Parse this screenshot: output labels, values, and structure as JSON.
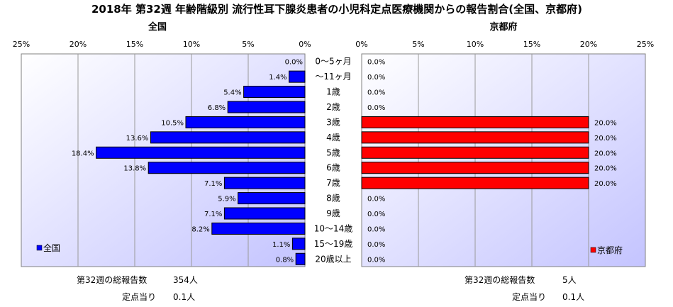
{
  "chart_data": {
    "type": "bar",
    "title": "2018年 第32週 年齢階級別 流行性耳下腺炎患者の小児科定点医療機関からの報告割合(全国、京都府)",
    "categories": [
      "0～5ヶ月",
      "～11ヶ月",
      "1歳",
      "2歳",
      "3歳",
      "4歳",
      "5歳",
      "6歳",
      "7歳",
      "8歳",
      "9歳",
      "10～14歳",
      "15～19歳",
      "20歳以上"
    ],
    "xticks": [
      "25%",
      "20%",
      "15%",
      "10%",
      "5%",
      "0%"
    ],
    "xticks_right": [
      "0%",
      "5%",
      "10%",
      "15%",
      "20%",
      "25%"
    ],
    "xlim": [
      0,
      25
    ],
    "series": [
      {
        "name": "全国",
        "panel_title": "全国",
        "color": "#0000ff",
        "values": [
          0.0,
          1.4,
          5.4,
          6.8,
          10.5,
          13.6,
          18.4,
          13.8,
          7.1,
          5.9,
          7.1,
          8.2,
          1.1,
          0.8
        ],
        "labels": [
          "0.0%",
          "1.4%",
          "5.4%",
          "6.8%",
          "10.5%",
          "13.6%",
          "18.4%",
          "13.8%",
          "7.1%",
          "5.9%",
          "7.1%",
          "8.2%",
          "1.1%",
          "0.8%"
        ]
      },
      {
        "name": "京都府",
        "panel_title": "京都府",
        "color": "#ff0000",
        "values": [
          0.0,
          0.0,
          0.0,
          0.0,
          20.0,
          20.0,
          20.0,
          20.0,
          20.0,
          0.0,
          0.0,
          0.0,
          0.0,
          0.0
        ],
        "labels": [
          "0.0%",
          "0.0%",
          "0.0%",
          "0.0%",
          "20.0%",
          "20.0%",
          "20.0%",
          "20.0%",
          "20.0%",
          "0.0%",
          "0.0%",
          "0.0%",
          "0.0%",
          "0.0%"
        ]
      }
    ],
    "legend": "bottom-left / bottom-right",
    "grid": "vertical"
  },
  "footer": {
    "national_total_label": "第32週の総報告数",
    "national_total_value": "354人",
    "national_per_label": "定点当り",
    "national_per_value": "0.1人",
    "kyoto_total_label": "第32週の総報告数",
    "kyoto_total_value": "5人",
    "kyoto_per_label": "定点当り",
    "kyoto_per_value": "0.1人"
  },
  "colors": {
    "plot_bg_top": "#ffffff",
    "plot_bg_bottom": "#c4c4ff",
    "national": "#0000ff",
    "kyoto": "#ff0000"
  }
}
